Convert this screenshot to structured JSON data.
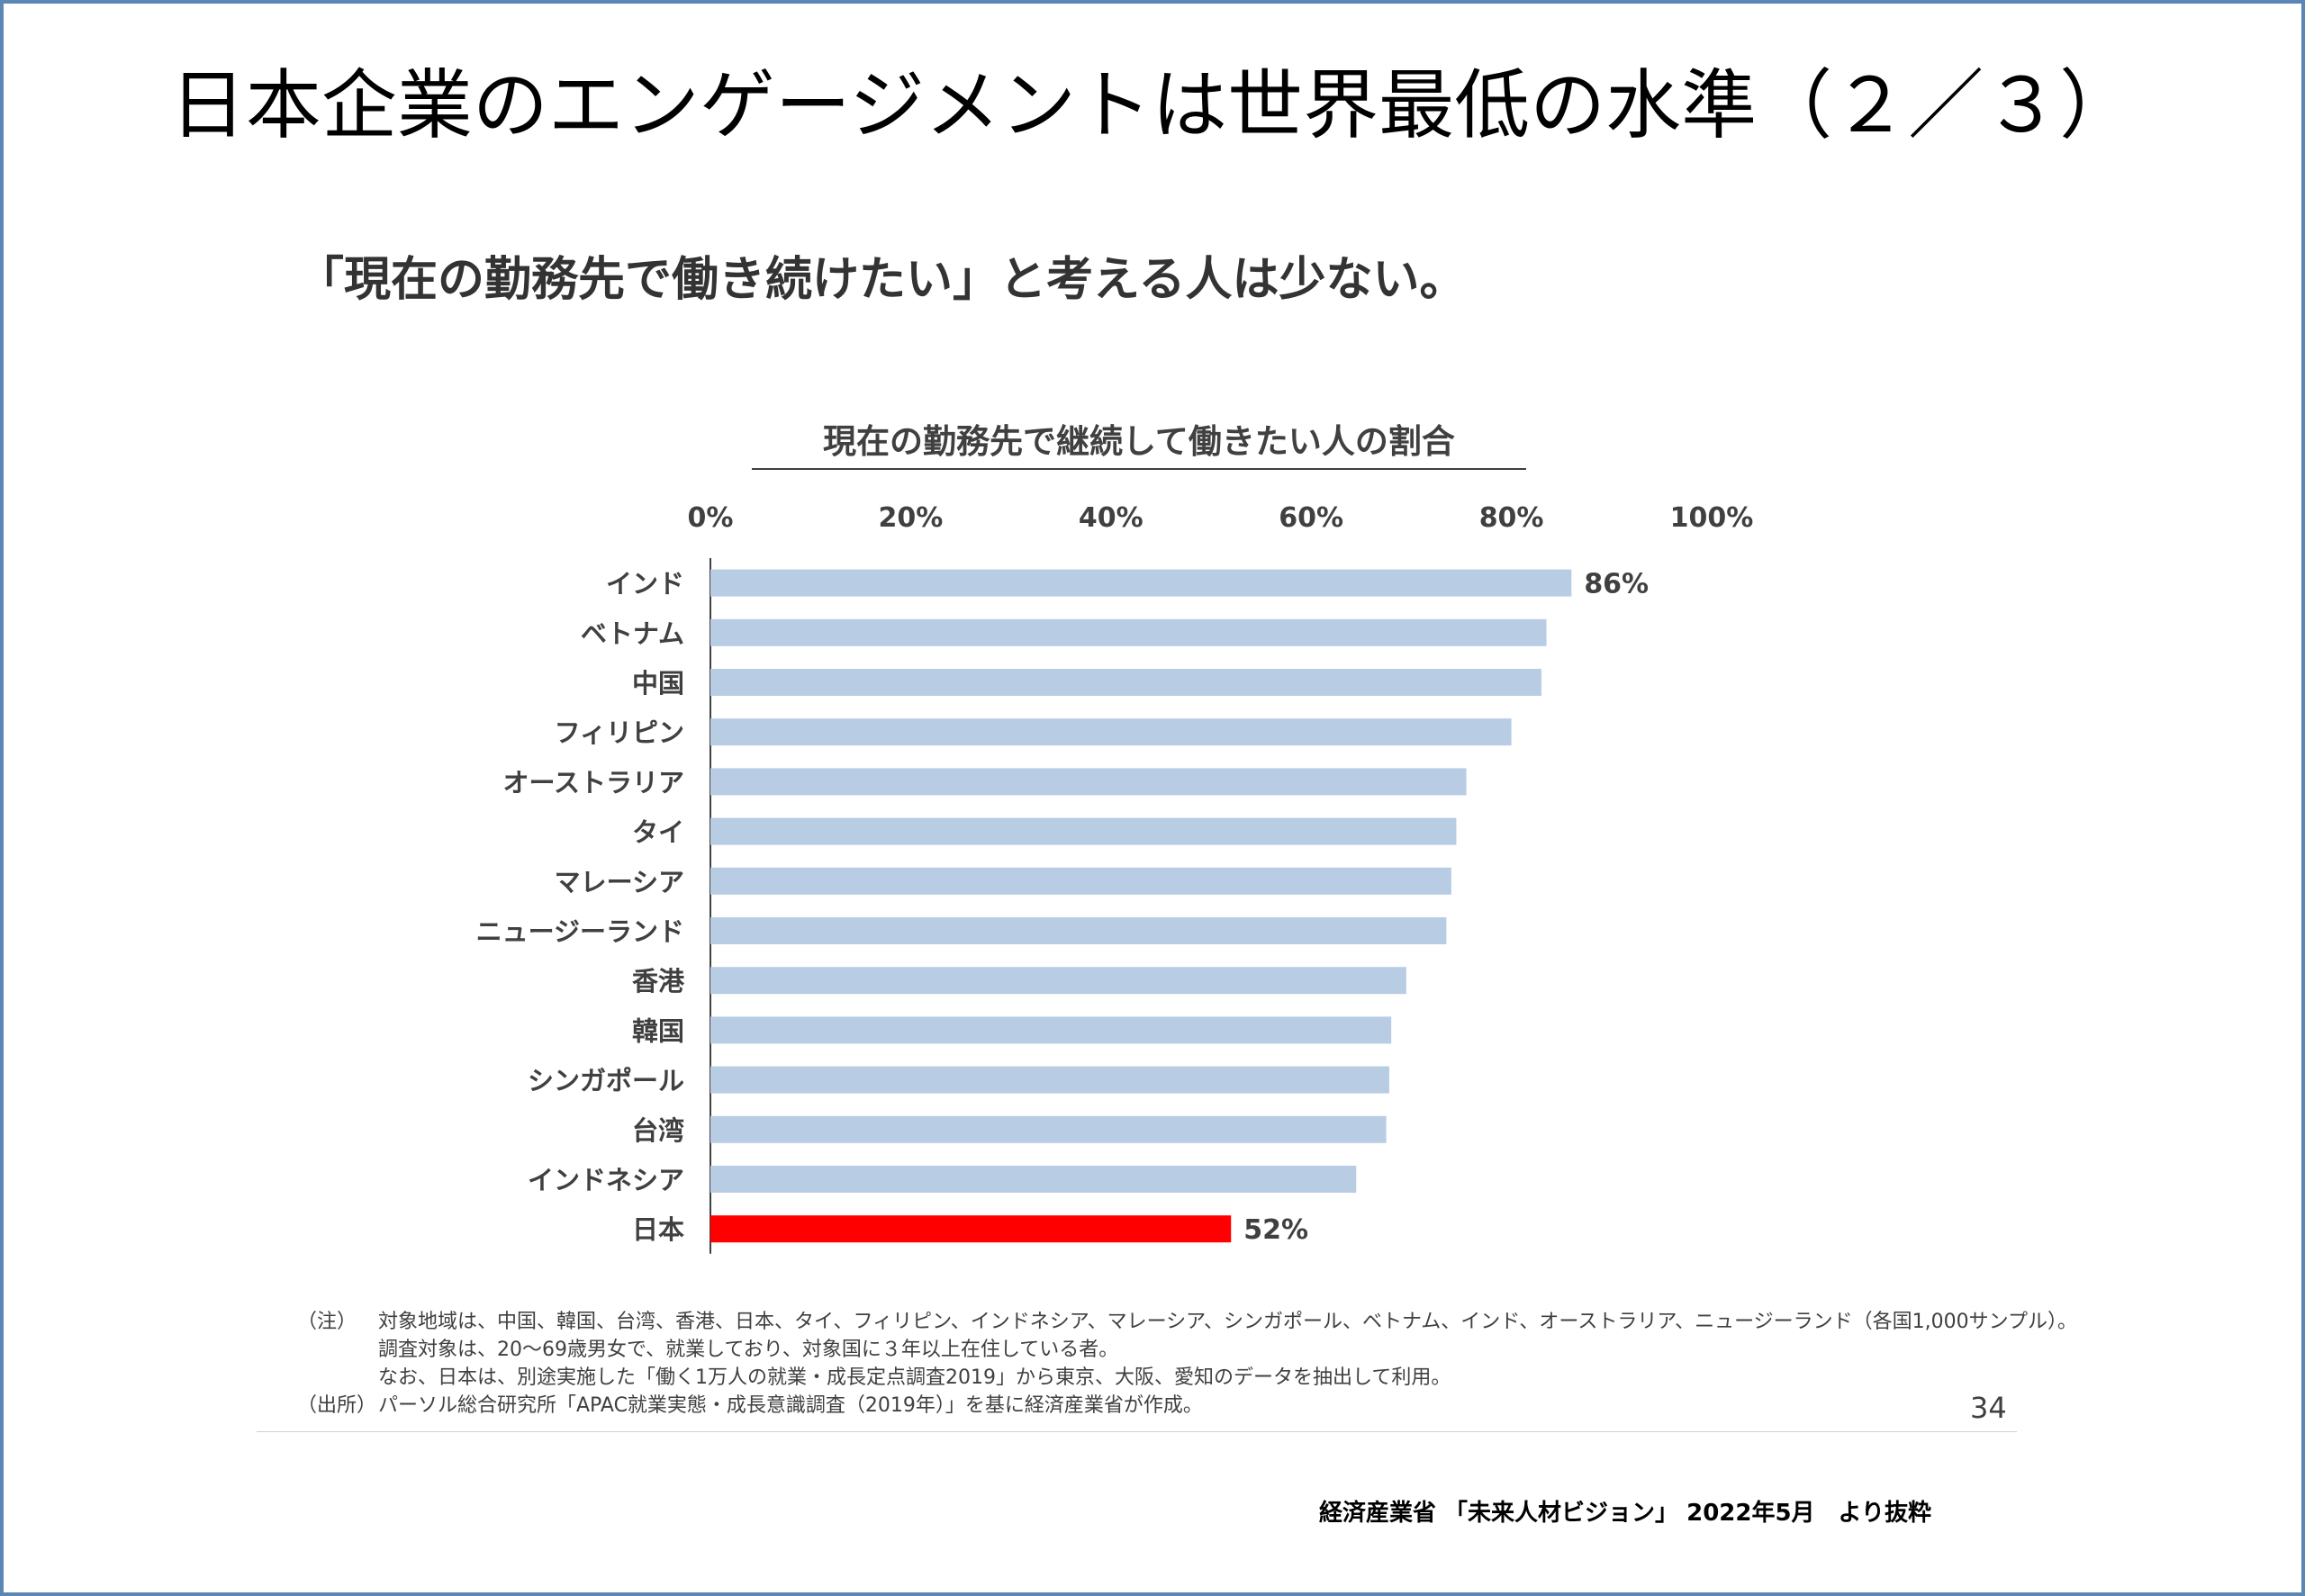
{
  "title": "日本企業のエンゲージメントは世界最低の水準（２／３）",
  "subtitle": "「現在の勤務先で働き続けたい」と考える人は少ない。",
  "notes": {
    "note_label": "（注）",
    "note_lines": [
      "対象地域は、中国、韓国、台湾、香港、日本、タイ、フィリピン、インドネシア、マレーシア、シンガポール、ベトナム、インド、オーストラリア、ニュージーランド（各国1,000サンプル）。",
      "調査対象は、20～69歳男女で、就業しており、対象国に３年以上在住している者。",
      "なお、日本は、別途実施した「働く1万人の就業・成長定点調査2019」から東京、大阪、愛知のデータを抽出して利用。"
    ],
    "source_label": "（出所）",
    "source_line": "パーソル総合研究所「APAC就業実態・成長意識調査（2019年）」を基に経済産業省が作成。"
  },
  "page_number": "34",
  "footer_source": "経済産業省 「未来人材ビジョン」 2022年5月　より抜粋",
  "colors": {
    "bar": "#b8cce4",
    "highlight": "#ff0000",
    "frame": "#5b86b6"
  },
  "chart_data": {
    "type": "bar",
    "orientation": "horizontal",
    "title": "現在の勤務先で継続して働きたい人の割合",
    "xlim": [
      0,
      100
    ],
    "x_ticks": [
      "0%",
      "20%",
      "40%",
      "60%",
      "80%",
      "100%"
    ],
    "x_axis_position": "top",
    "grid": false,
    "categories": [
      "インド",
      "ベトナム",
      "中国",
      "フィリピン",
      "オーストラリア",
      "タイ",
      "マレーシア",
      "ニュージーランド",
      "香港",
      "韓国",
      "シンガポール",
      "台湾",
      "インドネシア",
      "日本"
    ],
    "values": [
      86,
      83.5,
      83,
      80,
      75.5,
      74.5,
      74,
      73.5,
      69.5,
      68,
      67.8,
      67.5,
      64.5,
      52
    ],
    "data_labels": {
      "0": "86%",
      "13": "52%"
    },
    "highlight_index": 13
  }
}
